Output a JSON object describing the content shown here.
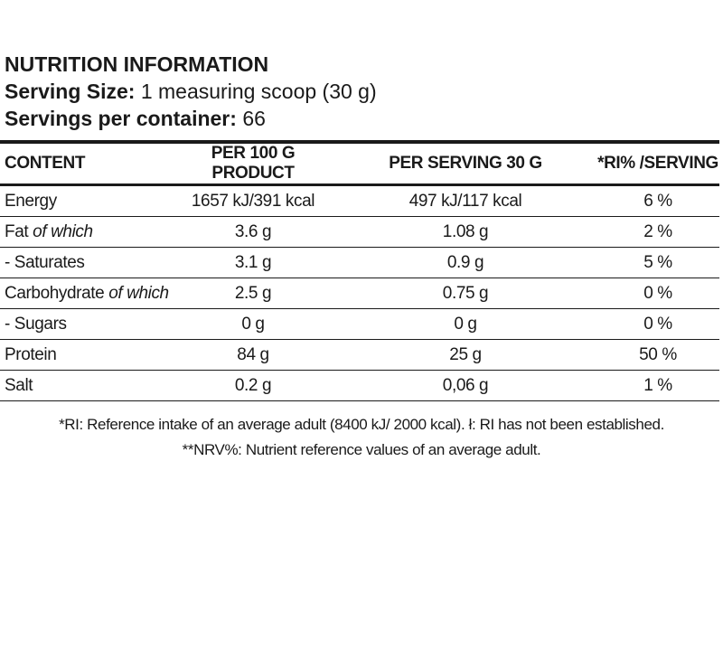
{
  "header": {
    "title": "NUTRITION INFORMATION",
    "serving_size": {
      "label": "Serving Size:",
      "value": "1 measuring scoop (30 g)"
    },
    "servings": {
      "label": "Servings per container:",
      "value": "66"
    }
  },
  "table": {
    "columns": [
      "CONTENT",
      "PER 100 G PRODUCT",
      "PER SERVING 30 G",
      "*RI% /SERVING"
    ],
    "rows": [
      {
        "label": "Energy",
        "cells": [
          "1657 kJ/391 kcal",
          "497 kJ/117 kcal",
          "6 %"
        ]
      },
      {
        "label": "Fat",
        "qualifier": "of which",
        "cells": [
          "3.6 g",
          "1.08 g",
          "2 %"
        ]
      },
      {
        "label": "- Saturates",
        "cells": [
          "3.1 g",
          "0.9 g",
          "5 %"
        ]
      },
      {
        "label": "Carbohydrate",
        "qualifier": "of which",
        "cells": [
          "2.5 g",
          "0.75 g",
          "0 %"
        ]
      },
      {
        "label": "- Sugars",
        "cells": [
          "0 g",
          "0 g",
          "0 %"
        ]
      },
      {
        "label": "Protein",
        "cells": [
          "84 g",
          "25 g",
          "50 %"
        ]
      },
      {
        "label": "Salt",
        "cells": [
          "0.2 g",
          "0,06 g",
          "1 %"
        ]
      }
    ]
  },
  "footnotes": [
    "*RI: Reference intake of an average adult (8400 kJ/ 2000 kcal).  ł: RI has not been established.",
    "**NRV%: Nutrient reference values of an average adult."
  ]
}
